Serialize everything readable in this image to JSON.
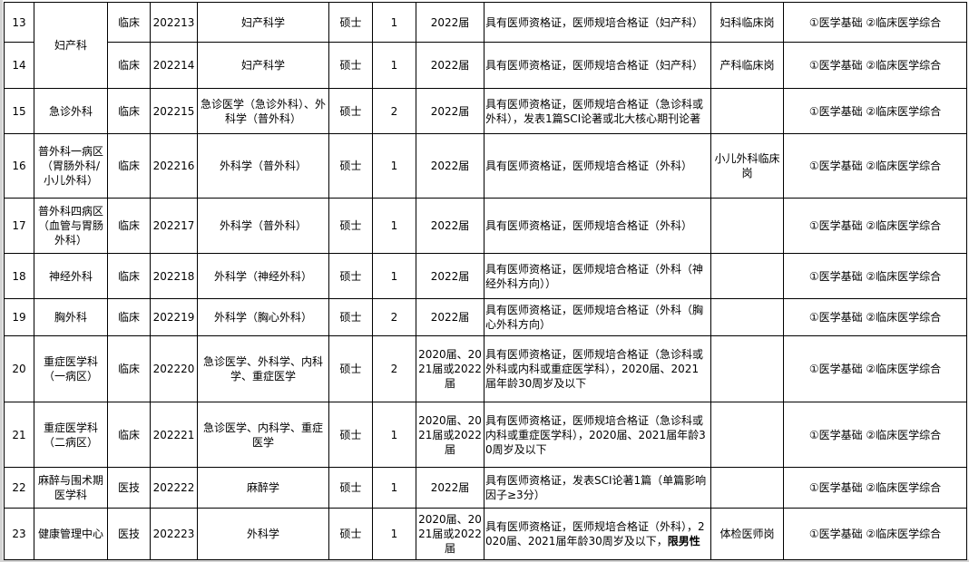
{
  "rows": [
    {
      "no": "13",
      "dept": "妇产科",
      "dept_rowspan": 2,
      "type": "临床",
      "code": "202213",
      "major": "妇产科学",
      "degree": "硕士",
      "count": "1",
      "grad": "2022届",
      "req": "具有医师资格证，医师规培合格证（妇产科）",
      "req_bold": "",
      "post": "妇科临床岗",
      "exam": "①医学基础 ②临床医学综合"
    },
    {
      "no": "14",
      "dept": null,
      "type": "临床",
      "code": "202214",
      "major": "妇产科学",
      "degree": "硕士",
      "count": "1",
      "grad": "2022届",
      "req": "具有医师资格证，医师规培合格证（妇产科）",
      "req_bold": "",
      "post": "产科临床岗",
      "exam": "①医学基础 ②临床医学综合"
    },
    {
      "no": "15",
      "dept": "急诊外科",
      "type": "临床",
      "code": "202215",
      "major": "急诊医学（急诊外科）、外科学（普外科）",
      "degree": "硕士",
      "count": "2",
      "grad": "2022届",
      "req": "具有医师资格证，医师规培合格证（急诊科或外科），发表1篇SCI论著或北大核心期刊论著",
      "req_bold": "",
      "post": "",
      "exam": "①医学基础 ②临床医学综合"
    },
    {
      "no": "16",
      "dept": "普外科一病区（胃肠外科/小儿外科）",
      "type": "临床",
      "code": "202216",
      "major": "外科学（普外科）",
      "degree": "硕士",
      "count": "1",
      "grad": "2022届",
      "req": "具有医师资格证，医师规培合格证（外科）",
      "req_bold": "",
      "post": "小儿外科临床岗",
      "exam": "①医学基础 ②临床医学综合"
    },
    {
      "no": "17",
      "dept": "普外科四病区（血管与胃肠外科）",
      "type": "临床",
      "code": "202217",
      "major": "外科学（普外科）",
      "degree": "硕士",
      "count": "1",
      "grad": "2022届",
      "req": "具有医师资格证，医师规培合格证（外科）",
      "req_bold": "",
      "post": "",
      "exam": "①医学基础 ②临床医学综合"
    },
    {
      "no": "18",
      "dept": "神经外科",
      "type": "临床",
      "code": "202218",
      "major": "外科学（神经外科）",
      "degree": "硕士",
      "count": "1",
      "grad": "2022届",
      "req": "具有医师资格证，医师规培合格证（外科（神经外科方向））",
      "req_bold": "",
      "post": "",
      "exam": "①医学基础 ②临床医学综合"
    },
    {
      "no": "19",
      "dept": "胸外科",
      "type": "临床",
      "code": "202219",
      "major": "外科学（胸心外科）",
      "degree": "硕士",
      "count": "2",
      "grad": "2022届",
      "req": "具有医师资格证，医师规培合格证（外科（胸心外科方向）",
      "req_bold": "",
      "post": "",
      "exam": "①医学基础 ②临床医学综合"
    },
    {
      "no": "20",
      "dept": "重症医学科（一病区）",
      "type": "临床",
      "code": "202220",
      "major": "急诊医学、外科学、内科学、重症医学",
      "degree": "硕士",
      "count": "2",
      "grad": "2020届、2021届或2022届",
      "req": "具有医师资格证，医师规培合格证（急诊科或外科或内科或重症医学科），2020届、2021届年龄30周岁及以下",
      "req_bold": "",
      "post": "",
      "exam": "①医学基础 ②临床医学综合"
    },
    {
      "no": "21",
      "dept": "重症医学科（二病区）",
      "type": "临床",
      "code": "202221",
      "major": "急诊医学、内科学、重症医学",
      "degree": "硕士",
      "count": "1",
      "grad": "2020届、2021届或2022届",
      "req": "具有医师资格证，医师规培合格证（急诊科或内科或重症医学科），2020届、2021届年龄30周岁及以下",
      "req_bold": "",
      "post": "",
      "exam": "①医学基础 ②临床医学综合"
    },
    {
      "no": "22",
      "dept": "麻醉与围术期医学科",
      "type": "医技",
      "code": "202222",
      "major": "麻醉学",
      "degree": "硕士",
      "count": "1",
      "grad": "2022届",
      "req": "具有医师资格证，发表SCI论著1篇（单篇影响因子≥3分）",
      "req_bold": "",
      "post": "",
      "exam": "①医学基础 ②临床医学综合"
    },
    {
      "no": "23",
      "dept": "健康管理中心",
      "type": "医技",
      "code": "202223",
      "major": "外科学",
      "degree": "硕士",
      "count": "1",
      "grad": "2020届、2021届或2022届",
      "req": "具有医师资格证，医师规培合格证（外科），2020届、2021届年龄30周岁及以下，",
      "req_bold": "限男性",
      "post": "体检医师岗",
      "exam": "①医学基础 ②临床医学综合"
    }
  ]
}
